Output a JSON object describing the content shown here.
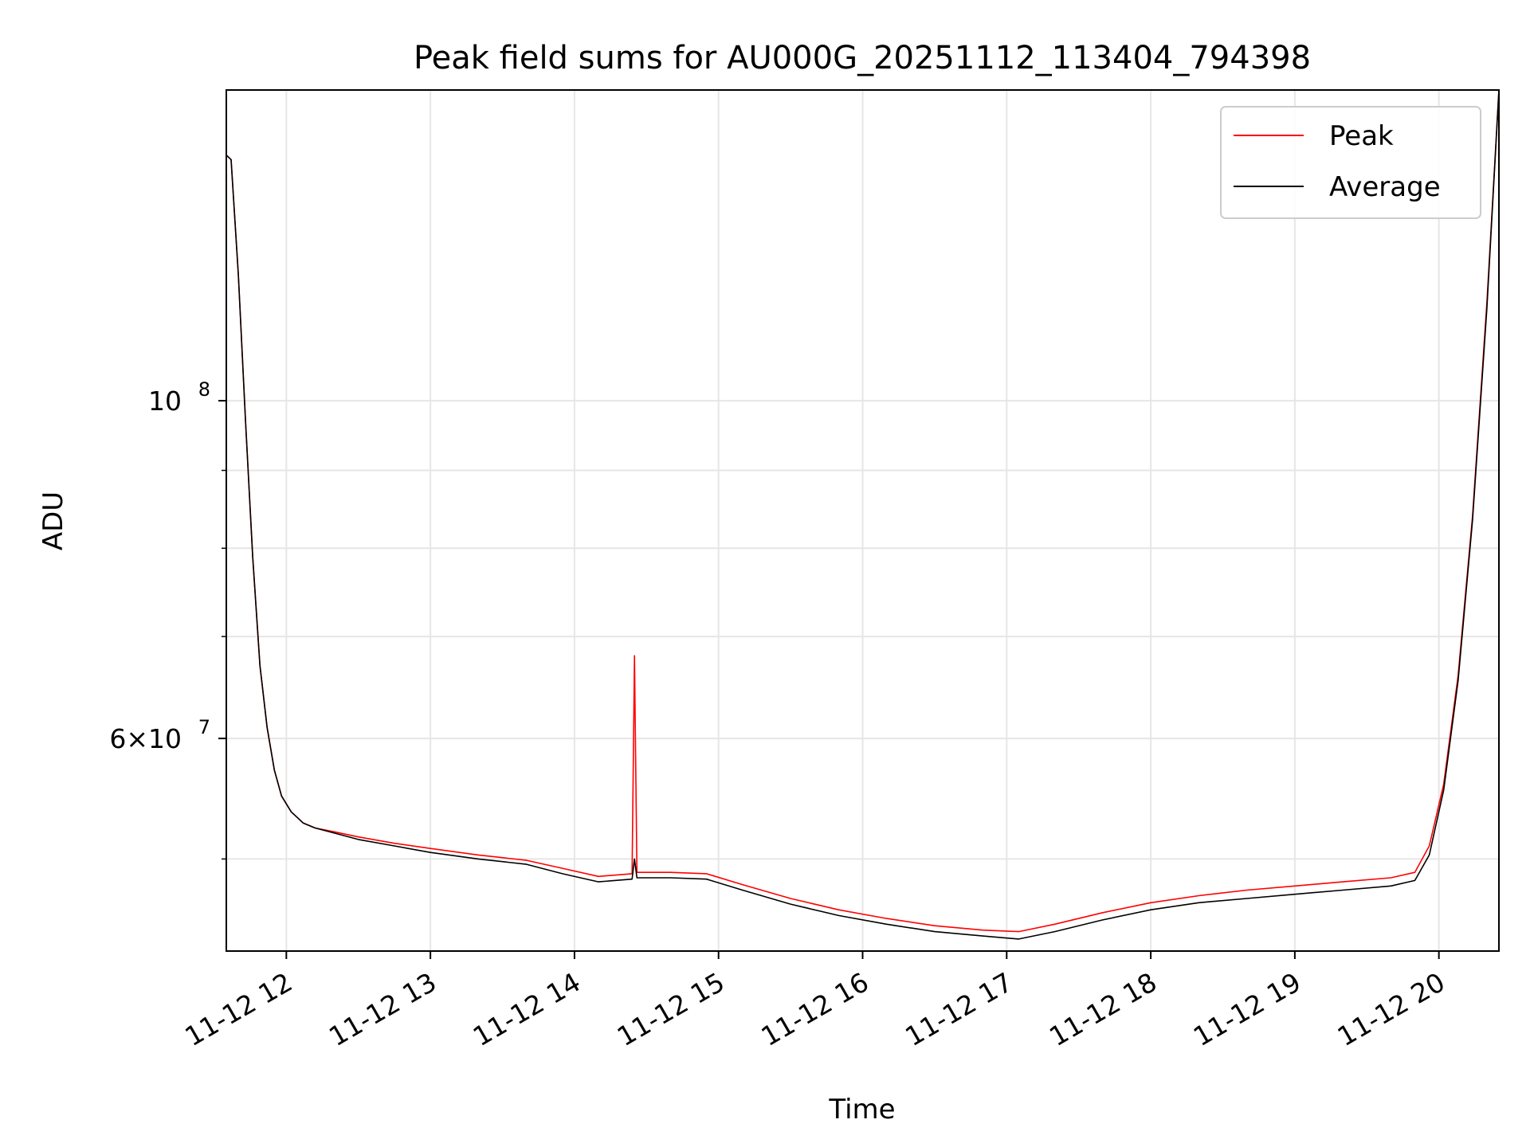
{
  "chart_data": {
    "type": "line",
    "title": "Peak field sums for AU000G_20251112_113404_794398",
    "xlabel": "Time",
    "ylabel": "ADU",
    "yscale": "log",
    "xlim": [
      "2025-11-12 11:35",
      "2025-11-12 20:25"
    ],
    "ylim": [
      43500000,
      160000000
    ],
    "grid": true,
    "legend": {
      "placement": "upper right",
      "entries": [
        "Peak",
        "Average"
      ]
    },
    "x_ticks": [
      "11-12 12",
      "11-12 13",
      "11-12 14",
      "11-12 15",
      "11-12 16",
      "11-12 17",
      "11-12 18",
      "11-12 19",
      "11-12 20"
    ],
    "y_ticks": [
      {
        "value": 100000000,
        "label": "10",
        "exp": "8"
      },
      {
        "value": 60000000,
        "label": "6×10",
        "exp": "7"
      }
    ],
    "series": [
      {
        "name": "Peak",
        "color": "#ff0000",
        "x": [
          "2025-11-12 11:35",
          "2025-11-12 11:37",
          "2025-11-12 11:40",
          "2025-11-12 11:43",
          "2025-11-12 11:46",
          "2025-11-12 11:49",
          "2025-11-12 11:52",
          "2025-11-12 11:55",
          "2025-11-12 11:58",
          "2025-11-12 12:02",
          "2025-11-12 12:07",
          "2025-11-12 12:12",
          "2025-11-12 12:20",
          "2025-11-12 12:30",
          "2025-11-12 12:45",
          "2025-11-12 13:00",
          "2025-11-12 13:20",
          "2025-11-12 13:40",
          "2025-11-12 13:55",
          "2025-11-12 14:10",
          "2025-11-12 14:24",
          "2025-11-12 14:25",
          "2025-11-12 14:26",
          "2025-11-12 14:40",
          "2025-11-12 14:55",
          "2025-11-12 15:10",
          "2025-11-12 15:30",
          "2025-11-12 15:50",
          "2025-11-12 16:10",
          "2025-11-12 16:30",
          "2025-11-12 16:50",
          "2025-11-12 17:05",
          "2025-11-12 17:20",
          "2025-11-12 17:40",
          "2025-11-12 18:00",
          "2025-11-12 18:20",
          "2025-11-12 18:40",
          "2025-11-12 19:00",
          "2025-11-12 19:20",
          "2025-11-12 19:40",
          "2025-11-12 19:50",
          "2025-11-12 19:56",
          "2025-11-12 20:02",
          "2025-11-12 20:08",
          "2025-11-12 20:14",
          "2025-11-12 20:20",
          "2025-11-12 20:25"
        ],
        "values": [
          145000000,
          144000000,
          121000000,
          97000000,
          79000000,
          67000000,
          61000000,
          57200000,
          55000000,
          53700000,
          52800000,
          52400000,
          52100000,
          51700000,
          51200000,
          50800000,
          50300000,
          49900000,
          49300000,
          48700000,
          48900000,
          68000000,
          49000000,
          49000000,
          48900000,
          48100000,
          47100000,
          46300000,
          45700000,
          45200000,
          44900000,
          44800000,
          45300000,
          46100000,
          46800000,
          47300000,
          47700000,
          48000000,
          48300000,
          48600000,
          49000000,
          51000000,
          56000000,
          66000000,
          84000000,
          116000000,
          160000000
        ]
      },
      {
        "name": "Average",
        "color": "#000000",
        "x": [
          "2025-11-12 11:35",
          "2025-11-12 11:37",
          "2025-11-12 11:40",
          "2025-11-12 11:43",
          "2025-11-12 11:46",
          "2025-11-12 11:49",
          "2025-11-12 11:52",
          "2025-11-12 11:55",
          "2025-11-12 11:58",
          "2025-11-12 12:02",
          "2025-11-12 12:07",
          "2025-11-12 12:12",
          "2025-11-12 12:20",
          "2025-11-12 12:30",
          "2025-11-12 12:45",
          "2025-11-12 13:00",
          "2025-11-12 13:20",
          "2025-11-12 13:40",
          "2025-11-12 13:55",
          "2025-11-12 14:10",
          "2025-11-12 14:24",
          "2025-11-12 14:25",
          "2025-11-12 14:26",
          "2025-11-12 14:40",
          "2025-11-12 14:55",
          "2025-11-12 15:10",
          "2025-11-12 15:30",
          "2025-11-12 15:50",
          "2025-11-12 16:10",
          "2025-11-12 16:30",
          "2025-11-12 16:50",
          "2025-11-12 17:05",
          "2025-11-12 17:20",
          "2025-11-12 17:40",
          "2025-11-12 18:00",
          "2025-11-12 18:20",
          "2025-11-12 18:40",
          "2025-11-12 19:00",
          "2025-11-12 19:20",
          "2025-11-12 19:40",
          "2025-11-12 19:50",
          "2025-11-12 19:56",
          "2025-11-12 20:02",
          "2025-11-12 20:08",
          "2025-11-12 20:14",
          "2025-11-12 20:20",
          "2025-11-12 20:25"
        ],
        "values": [
          145000000,
          144000000,
          121000000,
          97000000,
          79000000,
          67000000,
          61000000,
          57200000,
          55000000,
          53700000,
          52800000,
          52400000,
          52000000,
          51500000,
          51000000,
          50500000,
          50000000,
          49600000,
          48900000,
          48300000,
          48500000,
          50000000,
          48600000,
          48600000,
          48500000,
          47700000,
          46700000,
          45900000,
          45300000,
          44800000,
          44500000,
          44300000,
          44800000,
          45600000,
          46300000,
          46800000,
          47100000,
          47400000,
          47700000,
          48000000,
          48400000,
          50300000,
          55500000,
          65500000,
          83500000,
          115000000,
          160000000
        ]
      }
    ]
  }
}
